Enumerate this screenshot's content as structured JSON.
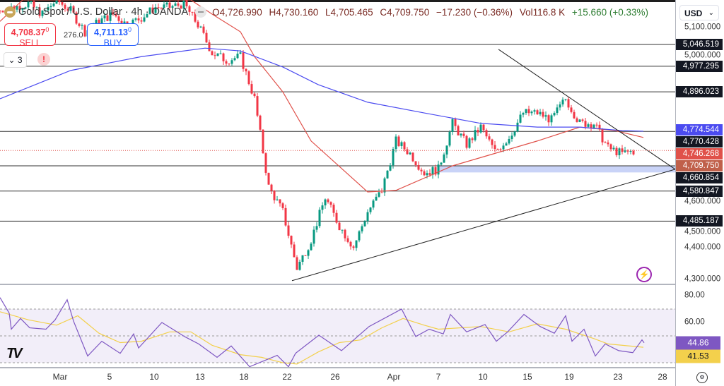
{
  "header": {
    "title": "Gold Spot / U.S. Dollar · 4h · OANDA",
    "open": "O4,726.990",
    "high": "H4,730.160",
    "low": "L4,705.465",
    "close": "C4,709.750",
    "change": "−17.230 (−0.36%)",
    "volume": "Vol116.8 K",
    "volume_change": "+15.660 (+0.33%)"
  },
  "trade": {
    "sell_price": "4,708.37",
    "sell_sup": "0",
    "sell_label": "SELL",
    "spread": "276.0",
    "buy_price": "4,711.13",
    "buy_sup": "0",
    "buy_label": "BUY",
    "indicators_count": "3",
    "alert_symbol": "!"
  },
  "currency": "USD",
  "colors": {
    "up": "#089981",
    "down": "#f23645",
    "ma_fast": "#e0514a",
    "ma_slow": "#4b4bf0",
    "rsi": "#7e57c2",
    "rsi_ma": "#f3d04c",
    "zone": "#bcc8f5"
  },
  "icons": [
    "gold-coin-icon",
    "minus-icon",
    "chevron-down-icon",
    "alert-icon",
    "lightning-icon",
    "tradingview-logo",
    "settings-icon"
  ],
  "chart_data": {
    "type": "candlestick",
    "price_path": [
      5154,
      5165,
      5176,
      5143,
      5188,
      5154,
      5087,
      5120,
      5143,
      5109,
      5132,
      5165,
      5165,
      5176,
      5109,
      5020,
      4997,
      5008,
      4874,
      4594,
      4515,
      4336,
      4426,
      4560,
      4470,
      4403,
      4515,
      4583,
      4740,
      4700,
      4639,
      4650,
      4796,
      4728,
      4784,
      4706,
      4751,
      4829,
      4829,
      4807,
      4874,
      4796,
      4796,
      4717,
      4700,
      4710
    ],
    "ma_fast": [
      [
        0,
        5120
      ],
      [
        1.6,
        5188
      ],
      [
        13.5,
        5188
      ],
      [
        15,
        5143
      ],
      [
        17,
        5087
      ],
      [
        18,
        5008
      ],
      [
        20,
        4896
      ],
      [
        22,
        4740
      ],
      [
        26,
        4578
      ],
      [
        28,
        4583
      ],
      [
        32,
        4661
      ],
      [
        38,
        4740
      ],
      [
        41,
        4784
      ],
      [
        43.5,
        4773
      ],
      [
        45.5,
        4751
      ]
    ],
    "ma_slow": [
      [
        0,
        4874
      ],
      [
        5,
        4964
      ],
      [
        10,
        5008
      ],
      [
        14.5,
        5035
      ],
      [
        17,
        5026
      ],
      [
        20,
        4975
      ],
      [
        22.5,
        4919
      ],
      [
        26,
        4863
      ],
      [
        30,
        4829
      ],
      [
        34,
        4796
      ],
      [
        38,
        4784
      ],
      [
        41,
        4784
      ],
      [
        44,
        4773
      ],
      [
        45.5,
        4771
      ]
    ],
    "levels": [
      5046.519,
      4977.295,
      4896.023,
      4770.428,
      4660.854,
      4580.847,
      4485.187
    ],
    "support_zone": [
      4640,
      4660.854
    ],
    "trendline_up": [
      [
        20.65,
        4296
      ],
      [
        47.75,
        4650
      ]
    ],
    "trendline_down": [
      [
        35.25,
        5031
      ],
      [
        47.75,
        4650
      ]
    ],
    "last_price": 4709.75,
    "price_ticks": [
      "5,100.000",
      "5,000.000",
      "4,600.000",
      "4,500.000",
      "4,400.000",
      "4,300.000"
    ],
    "price_tick_values": [
      5100,
      5000,
      4600,
      4500,
      4400,
      4300
    ],
    "price_tags": [
      {
        "value": 5046.519,
        "label": "5,046.519",
        "color": "#131722"
      },
      {
        "value": 4977.295,
        "label": "4,977.295",
        "color": "#131722"
      },
      {
        "value": 4896.023,
        "label": "4,896.023",
        "color": "#131722"
      },
      {
        "value": 4774.544,
        "label": "4,774.544",
        "color": "#4b4bf0"
      },
      {
        "value": 4770.428,
        "label": "4,770.428",
        "color": "#131722"
      },
      {
        "value": 4746.268,
        "label": "4,746.268",
        "color": "#e0514a"
      },
      {
        "value": 4709.75,
        "label": "4,709.750",
        "color": "#c0604a"
      },
      {
        "value": 4660.854,
        "label": "4,660.854",
        "color": "#131722"
      },
      {
        "value": 4580.847,
        "label": "4,580.847",
        "color": "#131722"
      },
      {
        "value": 4485.187,
        "label": "4,485.187",
        "color": "#131722"
      }
    ],
    "x_ticks": [
      "Mar",
      "5",
      "10",
      "13",
      "18",
      "22",
      "26",
      "Apr",
      "7",
      "10",
      "15",
      "19",
      "23",
      "28"
    ],
    "x_tick_positions": [
      4.25,
      7.75,
      10.9,
      14.15,
      17.25,
      20.3,
      23.7,
      27.85,
      31,
      34.15,
      37.3,
      40.25,
      43.7,
      46.85
    ],
    "rsi": {
      "levels": [
        70,
        50,
        30
      ],
      "ticks": [
        "80.00",
        "60.00"
      ],
      "tick_values": [
        80,
        60
      ],
      "value": "44.86",
      "ma_value": "41.53",
      "line": [
        [
          0,
          78.6
        ],
        [
          0.65,
          67
        ],
        [
          0.8,
          55
        ],
        [
          1.45,
          63
        ],
        [
          2.1,
          56
        ],
        [
          3.25,
          55
        ],
        [
          3.9,
          62
        ],
        [
          4.75,
          77
        ],
        [
          5.2,
          61
        ],
        [
          6.2,
          35
        ],
        [
          7.2,
          46
        ],
        [
          8.5,
          37
        ],
        [
          9.45,
          51.5
        ],
        [
          9.8,
          41
        ],
        [
          11.45,
          60
        ],
        [
          13.05,
          49.5
        ],
        [
          14.05,
          44
        ],
        [
          15.35,
          34
        ],
        [
          16.35,
          42.5
        ],
        [
          17.65,
          27
        ],
        [
          19.6,
          35.5
        ],
        [
          20.4,
          27
        ],
        [
          20.9,
          37
        ],
        [
          22.55,
          50.5
        ],
        [
          24.15,
          39
        ],
        [
          26.1,
          57
        ],
        [
          28.4,
          70
        ],
        [
          29.4,
          49.5
        ],
        [
          30.35,
          55
        ],
        [
          31.35,
          51.5
        ],
        [
          31.85,
          66
        ],
        [
          33,
          53
        ],
        [
          34.3,
          58.5
        ],
        [
          35.1,
          46
        ],
        [
          35.9,
          53
        ],
        [
          37.05,
          66
        ],
        [
          38.2,
          57
        ],
        [
          39.2,
          52
        ],
        [
          40,
          65
        ],
        [
          40.45,
          46
        ],
        [
          41.3,
          55
        ],
        [
          42.1,
          35
        ],
        [
          42.8,
          44
        ],
        [
          43.75,
          39
        ],
        [
          44.75,
          37.5
        ],
        [
          45.4,
          47
        ],
        [
          45.55,
          44.86
        ]
      ],
      "ma": [
        [
          0,
          68
        ],
        [
          2,
          62
        ],
        [
          4,
          58
        ],
        [
          5.5,
          65
        ],
        [
          7,
          52
        ],
        [
          8.5,
          45
        ],
        [
          10,
          46
        ],
        [
          12,
          53
        ],
        [
          13.5,
          53
        ],
        [
          15,
          43
        ],
        [
          17,
          36
        ],
        [
          18.5,
          34
        ],
        [
          20,
          30
        ],
        [
          21,
          29
        ],
        [
          22.5,
          38
        ],
        [
          24,
          45
        ],
        [
          25.5,
          47
        ],
        [
          27,
          56
        ],
        [
          28.5,
          63
        ],
        [
          30,
          58
        ],
        [
          31,
          55
        ],
        [
          32.5,
          56
        ],
        [
          34,
          57
        ],
        [
          36,
          53
        ],
        [
          38,
          59
        ],
        [
          40,
          55
        ],
        [
          42,
          48
        ],
        [
          43,
          44
        ],
        [
          45.5,
          41.53
        ]
      ]
    }
  }
}
